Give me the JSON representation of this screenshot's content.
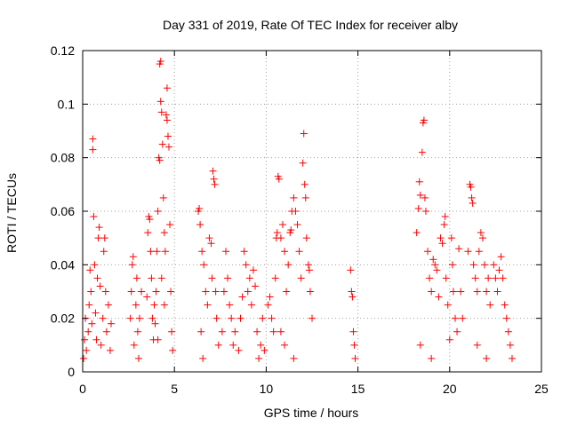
{
  "chart_data": {
    "type": "scatter",
    "title": "Day 331 of 2019, Rate Of TEC Index for receiver alby",
    "xlabel": "GPS time / hours",
    "ylabel": "ROTI / TECUs",
    "xlim": [
      0,
      25
    ],
    "ylim": [
      0,
      0.12
    ],
    "x_ticks": [
      0,
      5,
      10,
      15,
      20,
      25
    ],
    "x_tick_labels": [
      "0",
      "5",
      "10",
      "15",
      "20",
      "25"
    ],
    "y_ticks": [
      0,
      0.02,
      0.04,
      0.06,
      0.08,
      0.1,
      0.12
    ],
    "y_tick_labels": [
      "0",
      "0.02",
      "0.04",
      "0.06",
      "0.08",
      "0.1",
      "0.12"
    ],
    "grid": true,
    "marker": "+",
    "color": "#ff0000",
    "series": [
      {
        "name": "ROTI",
        "points": [
          [
            0.05,
            0.005
          ],
          [
            0.1,
            0.012
          ],
          [
            0.15,
            0.02
          ],
          [
            0.2,
            0.008
          ],
          [
            0.3,
            0.015
          ],
          [
            0.35,
            0.025
          ],
          [
            0.4,
            0.038
          ],
          [
            0.45,
            0.03
          ],
          [
            0.5,
            0.018
          ],
          [
            0.55,
            0.087
          ],
          [
            0.55,
            0.083
          ],
          [
            0.6,
            0.058
          ],
          [
            0.65,
            0.04
          ],
          [
            0.7,
            0.022
          ],
          [
            0.75,
            0.012
          ],
          [
            0.8,
            0.035
          ],
          [
            0.85,
            0.05
          ],
          [
            0.9,
            0.054
          ],
          [
            0.95,
            0.032
          ],
          [
            1.0,
            0.01
          ],
          [
            1.1,
            0.02
          ],
          [
            1.15,
            0.045
          ],
          [
            1.2,
            0.05
          ],
          [
            1.25,
            0.03
          ],
          [
            1.3,
            0.015
          ],
          [
            1.4,
            0.025
          ],
          [
            1.5,
            0.008
          ],
          [
            1.55,
            0.018
          ],
          [
            2.6,
            0.02
          ],
          [
            2.65,
            0.03
          ],
          [
            2.7,
            0.04
          ],
          [
            2.75,
            0.043
          ],
          [
            2.8,
            0.01
          ],
          [
            2.9,
            0.025
          ],
          [
            2.95,
            0.035
          ],
          [
            3.0,
            0.015
          ],
          [
            3.05,
            0.005
          ],
          [
            3.1,
            0.02
          ],
          [
            3.2,
            0.03
          ],
          [
            3.5,
            0.028
          ],
          [
            3.55,
            0.052
          ],
          [
            3.6,
            0.058
          ],
          [
            3.65,
            0.057
          ],
          [
            3.7,
            0.045
          ],
          [
            3.75,
            0.035
          ],
          [
            3.8,
            0.02
          ],
          [
            3.85,
            0.012
          ],
          [
            3.9,
            0.025
          ],
          [
            3.95,
            0.018
          ],
          [
            4.0,
            0.03
          ],
          [
            4.05,
            0.045
          ],
          [
            4.1,
            0.06
          ],
          [
            4.15,
            0.08
          ],
          [
            4.2,
            0.079
          ],
          [
            4.2,
            0.115
          ],
          [
            4.25,
            0.116
          ],
          [
            4.25,
            0.101
          ],
          [
            4.3,
            0.097
          ],
          [
            4.35,
            0.085
          ],
          [
            4.4,
            0.065
          ],
          [
            4.45,
            0.052
          ],
          [
            4.5,
            0.045
          ],
          [
            4.55,
            0.096
          ],
          [
            4.6,
            0.094
          ],
          [
            4.6,
            0.106
          ],
          [
            4.65,
            0.088
          ],
          [
            4.7,
            0.084
          ],
          [
            4.75,
            0.055
          ],
          [
            4.8,
            0.03
          ],
          [
            4.85,
            0.015
          ],
          [
            4.9,
            0.008
          ],
          [
            4.45,
            0.025
          ],
          [
            4.3,
            0.035
          ],
          [
            4.1,
            0.012
          ],
          [
            6.3,
            0.06
          ],
          [
            6.35,
            0.061
          ],
          [
            6.4,
            0.055
          ],
          [
            6.5,
            0.045
          ],
          [
            6.6,
            0.04
          ],
          [
            6.7,
            0.03
          ],
          [
            6.8,
            0.025
          ],
          [
            6.9,
            0.05
          ],
          [
            7.0,
            0.048
          ],
          [
            7.05,
            0.035
          ],
          [
            7.1,
            0.075
          ],
          [
            7.15,
            0.072
          ],
          [
            7.2,
            0.07
          ],
          [
            7.25,
            0.03
          ],
          [
            7.3,
            0.02
          ],
          [
            7.4,
            0.01
          ],
          [
            6.45,
            0.015
          ],
          [
            6.55,
            0.005
          ],
          [
            7.6,
            0.015
          ],
          [
            7.7,
            0.03
          ],
          [
            7.8,
            0.045
          ],
          [
            7.9,
            0.035
          ],
          [
            8.0,
            0.025
          ],
          [
            8.1,
            0.02
          ],
          [
            8.2,
            0.01
          ],
          [
            8.3,
            0.015
          ],
          [
            8.5,
            0.008
          ],
          [
            8.6,
            0.02
          ],
          [
            8.7,
            0.028
          ],
          [
            8.8,
            0.045
          ],
          [
            8.9,
            0.04
          ],
          [
            9.0,
            0.03
          ],
          [
            9.1,
            0.035
          ],
          [
            9.2,
            0.025
          ],
          [
            9.3,
            0.038
          ],
          [
            9.4,
            0.032
          ],
          [
            9.5,
            0.015
          ],
          [
            9.6,
            0.005
          ],
          [
            9.7,
            0.01
          ],
          [
            9.8,
            0.02
          ],
          [
            9.9,
            0.008
          ],
          [
            10.1,
            0.025
          ],
          [
            10.2,
            0.028
          ],
          [
            10.3,
            0.02
          ],
          [
            10.4,
            0.015
          ],
          [
            10.5,
            0.035
          ],
          [
            10.55,
            0.05
          ],
          [
            10.6,
            0.052
          ],
          [
            10.65,
            0.073
          ],
          [
            10.7,
            0.072
          ],
          [
            10.8,
            0.05
          ],
          [
            10.9,
            0.055
          ],
          [
            11.0,
            0.045
          ],
          [
            11.1,
            0.03
          ],
          [
            11.2,
            0.04
          ],
          [
            11.3,
            0.052
          ],
          [
            11.35,
            0.053
          ],
          [
            11.4,
            0.06
          ],
          [
            11.5,
            0.065
          ],
          [
            11.6,
            0.06
          ],
          [
            11.7,
            0.055
          ],
          [
            11.8,
            0.045
          ],
          [
            11.9,
            0.035
          ],
          [
            12.0,
            0.078
          ],
          [
            12.05,
            0.089
          ],
          [
            12.1,
            0.07
          ],
          [
            12.15,
            0.065
          ],
          [
            12.2,
            0.05
          ],
          [
            12.3,
            0.04
          ],
          [
            12.35,
            0.038
          ],
          [
            12.4,
            0.03
          ],
          [
            12.5,
            0.02
          ],
          [
            11.0,
            0.01
          ],
          [
            11.5,
            0.005
          ],
          [
            10.8,
            0.015
          ],
          [
            14.6,
            0.038
          ],
          [
            14.65,
            0.03
          ],
          [
            14.7,
            0.028
          ],
          [
            14.75,
            0.015
          ],
          [
            14.8,
            0.01
          ],
          [
            14.85,
            0.005
          ],
          [
            18.2,
            0.052
          ],
          [
            18.3,
            0.061
          ],
          [
            18.35,
            0.071
          ],
          [
            18.4,
            0.066
          ],
          [
            18.5,
            0.082
          ],
          [
            18.55,
            0.093
          ],
          [
            18.6,
            0.094
          ],
          [
            18.65,
            0.065
          ],
          [
            18.7,
            0.06
          ],
          [
            18.8,
            0.045
          ],
          [
            18.9,
            0.035
          ],
          [
            19.0,
            0.03
          ],
          [
            19.1,
            0.042
          ],
          [
            19.2,
            0.04
          ],
          [
            19.3,
            0.038
          ],
          [
            19.4,
            0.028
          ],
          [
            19.5,
            0.05
          ],
          [
            19.6,
            0.048
          ],
          [
            19.7,
            0.055
          ],
          [
            19.75,
            0.058
          ],
          [
            19.8,
            0.035
          ],
          [
            19.9,
            0.025
          ],
          [
            20.0,
            0.012
          ],
          [
            20.1,
            0.05
          ],
          [
            20.15,
            0.04
          ],
          [
            20.2,
            0.03
          ],
          [
            20.3,
            0.02
          ],
          [
            20.4,
            0.015
          ],
          [
            20.5,
            0.046
          ],
          [
            20.6,
            0.03
          ],
          [
            20.7,
            0.02
          ],
          [
            18.4,
            0.01
          ],
          [
            19.0,
            0.005
          ],
          [
            21.0,
            0.045
          ],
          [
            21.1,
            0.07
          ],
          [
            21.15,
            0.069
          ],
          [
            21.2,
            0.065
          ],
          [
            21.25,
            0.063
          ],
          [
            21.3,
            0.04
          ],
          [
            21.4,
            0.035
          ],
          [
            21.5,
            0.03
          ],
          [
            21.6,
            0.045
          ],
          [
            21.7,
            0.052
          ],
          [
            21.8,
            0.05
          ],
          [
            21.9,
            0.04
          ],
          [
            22.0,
            0.03
          ],
          [
            22.1,
            0.035
          ],
          [
            22.2,
            0.025
          ],
          [
            22.4,
            0.04
          ],
          [
            22.5,
            0.035
          ],
          [
            22.6,
            0.03
          ],
          [
            22.7,
            0.038
          ],
          [
            22.8,
            0.043
          ],
          [
            22.9,
            0.035
          ],
          [
            23.0,
            0.025
          ],
          [
            23.1,
            0.02
          ],
          [
            23.2,
            0.015
          ],
          [
            23.3,
            0.01
          ],
          [
            23.4,
            0.005
          ],
          [
            21.5,
            0.01
          ],
          [
            22.0,
            0.005
          ]
        ]
      }
    ]
  }
}
